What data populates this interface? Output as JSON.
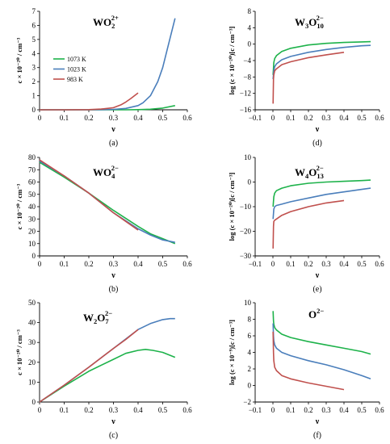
{
  "series_legend": [
    "1073 K",
    "1023 K",
    "983 K"
  ],
  "colors": {
    "1073 K": "#1db24a",
    "1023 K": "#4a7ebb",
    "983 K": "#c0504d"
  },
  "chart_data": [
    {
      "panel": "(a)",
      "type": "line",
      "title": {
        "base": "WO",
        "sub": "2",
        "sup": "2+"
      },
      "ylabel": "c × 10⁻²⁰ / cm⁻³",
      "xlabel": "ν",
      "xlim": [
        0,
        0.6
      ],
      "ylim": [
        0,
        7
      ],
      "xticks": [
        "0",
        "0.1",
        "0.2",
        "0.3",
        "0.4",
        "0.5",
        "0.6"
      ],
      "yticks": [
        "0",
        "1",
        "2",
        "3",
        "4",
        "5",
        "6",
        "7"
      ],
      "legend": "upper-left",
      "series": [
        {
          "name": "1073 K",
          "x": [
            0,
            0.1,
            0.2,
            0.3,
            0.35,
            0.4,
            0.45,
            0.5,
            0.55
          ],
          "y": [
            0,
            0,
            0,
            0,
            0,
            0.01,
            0.04,
            0.12,
            0.3
          ]
        },
        {
          "name": "1023 K",
          "x": [
            0,
            0.1,
            0.2,
            0.25,
            0.3,
            0.35,
            0.4,
            0.42,
            0.45,
            0.48,
            0.5,
            0.52,
            0.55
          ],
          "y": [
            0,
            0,
            0,
            0.01,
            0.03,
            0.1,
            0.3,
            0.5,
            1.0,
            2.0,
            3.0,
            4.4,
            6.5
          ]
        },
        {
          "name": "983 K",
          "x": [
            0,
            0.1,
            0.2,
            0.25,
            0.3,
            0.33,
            0.35,
            0.37,
            0.4
          ],
          "y": [
            0,
            0,
            0.01,
            0.05,
            0.15,
            0.35,
            0.55,
            0.8,
            1.2
          ]
        }
      ]
    },
    {
      "panel": "(d)",
      "type": "line",
      "title": {
        "base": "W",
        "sub": "3",
        "base2": "O",
        "sub2": "10",
        "sup": "2−"
      },
      "ylabel": "log (c × 10⁻²⁰)[c / cm⁻³]",
      "xlabel": "ν",
      "xlim": [
        -0.1,
        0.6
      ],
      "ylim": [
        -16,
        8
      ],
      "xticks": [
        "−0.1",
        "0",
        "0.1",
        "0.2",
        "0.3",
        "0.4",
        "0.5",
        "0.6"
      ],
      "yticks": [
        "−16",
        "−12",
        "−8",
        "−4",
        "0",
        "4",
        "8"
      ],
      "series": [
        {
          "name": "1073 K",
          "x": [
            0.001,
            0.005,
            0.01,
            0.02,
            0.05,
            0.1,
            0.2,
            0.3,
            0.4,
            0.5,
            0.55
          ],
          "y": [
            -7.5,
            -4.5,
            -3.5,
            -2.8,
            -1.8,
            -1.0,
            -0.2,
            0.2,
            0.4,
            0.55,
            0.6
          ]
        },
        {
          "name": "1023 K",
          "x": [
            0.001,
            0.005,
            0.01,
            0.02,
            0.05,
            0.1,
            0.2,
            0.3,
            0.4,
            0.5,
            0.55
          ],
          "y": [
            -8.5,
            -6.5,
            -5.5,
            -4.8,
            -3.8,
            -3.0,
            -2.0,
            -1.3,
            -0.8,
            -0.4,
            -0.3
          ]
        },
        {
          "name": "983 K",
          "x": [
            0.001,
            0.003,
            0.005,
            0.01,
            0.02,
            0.05,
            0.1,
            0.2,
            0.3,
            0.4
          ],
          "y": [
            -14.5,
            -8.5,
            -7.5,
            -6.5,
            -6.0,
            -5.0,
            -4.3,
            -3.3,
            -2.6,
            -2.0
          ]
        }
      ]
    },
    {
      "panel": "(b)",
      "type": "line",
      "title": {
        "base": "WO",
        "sub": "4",
        "sup": "2−"
      },
      "ylabel": "c × 10⁻²⁰ / cm⁻³",
      "xlabel": "ν",
      "xlim": [
        0,
        0.6
      ],
      "ylim": [
        0,
        80
      ],
      "xticks": [
        "0",
        "0.1",
        "0.2",
        "0.3",
        "0.4",
        "0.5",
        "0.6"
      ],
      "yticks": [
        "0",
        "10",
        "20",
        "30",
        "40",
        "50",
        "60",
        "70",
        "80"
      ],
      "series": [
        {
          "name": "1073 K",
          "x": [
            0,
            0.1,
            0.2,
            0.3,
            0.4,
            0.45,
            0.5,
            0.55
          ],
          "y": [
            76,
            64,
            51,
            37,
            24,
            18,
            14,
            10
          ]
        },
        {
          "name": "1023 K",
          "x": [
            0,
            0.1,
            0.2,
            0.3,
            0.4,
            0.45,
            0.5,
            0.55
          ],
          "y": [
            77,
            65,
            51,
            35,
            22,
            17,
            13,
            11
          ]
        },
        {
          "name": "983 K",
          "x": [
            0,
            0.1,
            0.2,
            0.3,
            0.35,
            0.4
          ],
          "y": [
            78,
            65,
            51,
            35,
            28,
            21
          ]
        }
      ]
    },
    {
      "panel": "(e)",
      "type": "line",
      "title": {
        "base": "W",
        "sub": "4",
        "base2": "O",
        "sub2": "13",
        "sup": "2−"
      },
      "ylabel": "log (c × 10⁻²⁰)[c / cm⁻³]",
      "xlabel": "ν",
      "xlim": [
        -0.1,
        0.6
      ],
      "ylim": [
        -30,
        10
      ],
      "xticks": [
        "−0.1",
        "0",
        "0.1",
        "0.2",
        "0.3",
        "0.4",
        "0.5",
        "0.6"
      ],
      "yticks": [
        "−30",
        "−20",
        "−10",
        "0",
        "10"
      ],
      "series": [
        {
          "name": "1073 K",
          "x": [
            0.001,
            0.005,
            0.01,
            0.02,
            0.05,
            0.1,
            0.2,
            0.3,
            0.4,
            0.5,
            0.55
          ],
          "y": [
            -10,
            -6,
            -4.5,
            -3.5,
            -2.5,
            -1.5,
            -0.5,
            0,
            0.3,
            0.6,
            0.8
          ]
        },
        {
          "name": "1023 K",
          "x": [
            0.001,
            0.005,
            0.01,
            0.02,
            0.05,
            0.1,
            0.2,
            0.3,
            0.4,
            0.5,
            0.55
          ],
          "y": [
            -15,
            -11,
            -10,
            -9.5,
            -9,
            -8,
            -6.5,
            -5,
            -4,
            -3,
            -2.5
          ]
        },
        {
          "name": "983 K",
          "x": [
            0.001,
            0.003,
            0.005,
            0.01,
            0.02,
            0.05,
            0.1,
            0.2,
            0.3,
            0.4
          ],
          "y": [
            -27,
            -18,
            -16,
            -15.5,
            -15,
            -13.5,
            -12,
            -10,
            -8.5,
            -7.5
          ]
        }
      ]
    },
    {
      "panel": "(c)",
      "type": "line",
      "title": {
        "base": "W",
        "sub": "2",
        "base2": "O",
        "sub2": "7",
        "sup": "2−"
      },
      "ylabel": "c × 10⁻²⁰ / cm⁻³",
      "xlabel": "ν",
      "xlim": [
        0,
        0.6
      ],
      "ylim": [
        0,
        50
      ],
      "xticks": [
        "0",
        "0.1",
        "0.2",
        "0.3",
        "0.4",
        "0.5",
        "0.6"
      ],
      "yticks": [
        "0",
        "10",
        "20",
        "30",
        "40",
        "50"
      ],
      "series": [
        {
          "name": "1073 K",
          "x": [
            0,
            0.1,
            0.2,
            0.3,
            0.35,
            0.4,
            0.43,
            0.46,
            0.5,
            0.55
          ],
          "y": [
            0,
            8,
            15.5,
            21.5,
            24.5,
            26,
            26.5,
            26,
            25,
            22.5
          ]
        },
        {
          "name": "1023 K",
          "x": [
            0,
            0.1,
            0.2,
            0.3,
            0.4,
            0.45,
            0.5,
            0.53,
            0.55
          ],
          "y": [
            0,
            8.5,
            17.5,
            27,
            36.5,
            39.5,
            41.5,
            42,
            42
          ]
        },
        {
          "name": "983 K",
          "x": [
            0,
            0.1,
            0.2,
            0.3,
            0.35,
            0.4
          ],
          "y": [
            0,
            8.5,
            17.5,
            27,
            31.5,
            36.5
          ]
        }
      ]
    },
    {
      "panel": "(f)",
      "type": "line",
      "title": {
        "base": "O",
        "sup": "2−"
      },
      "ylabel": "log (c × 10⁻⁹)[c / cm⁻³]",
      "xlabel": "ν",
      "xlim": [
        -0.1,
        0.6
      ],
      "ylim": [
        -2,
        10
      ],
      "xticks": [
        "−0.1",
        "0",
        "0.1",
        "0.2",
        "0.3",
        "0.4",
        "0.5",
        "0.6"
      ],
      "yticks": [
        "−2",
        "0",
        "2",
        "4",
        "6",
        "8",
        "10"
      ],
      "series": [
        {
          "name": "1073 K",
          "x": [
            0.001,
            0.003,
            0.005,
            0.01,
            0.02,
            0.05,
            0.1,
            0.2,
            0.3,
            0.4,
            0.5,
            0.55
          ],
          "y": [
            9.0,
            7.8,
            7.4,
            7.0,
            6.7,
            6.2,
            5.8,
            5.3,
            4.9,
            4.5,
            4.1,
            3.8
          ]
        },
        {
          "name": "1023 K",
          "x": [
            0.001,
            0.003,
            0.005,
            0.01,
            0.02,
            0.05,
            0.1,
            0.2,
            0.3,
            0.4,
            0.5,
            0.55
          ],
          "y": [
            7.5,
            6.0,
            5.4,
            4.9,
            4.5,
            4.0,
            3.6,
            3.0,
            2.5,
            1.9,
            1.2,
            0.8
          ]
        },
        {
          "name": "983 K",
          "x": [
            0.001,
            0.003,
            0.005,
            0.01,
            0.02,
            0.05,
            0.1,
            0.2,
            0.3,
            0.4
          ],
          "y": [
            6.5,
            4.0,
            3.0,
            2.2,
            1.8,
            1.2,
            0.8,
            0.3,
            -0.1,
            -0.5
          ]
        }
      ]
    }
  ]
}
